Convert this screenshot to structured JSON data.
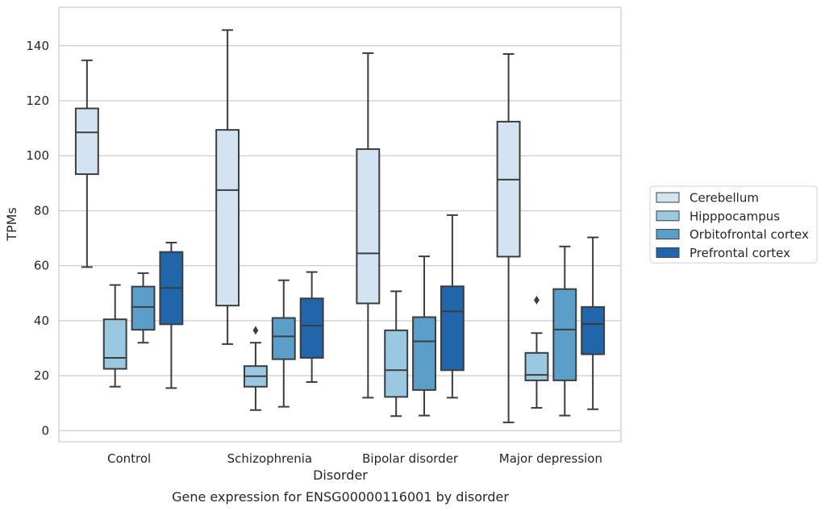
{
  "chart_data": {
    "type": "box",
    "caption": "Gene expression for ENSG00000116001 by disorder",
    "xlabel": "Disorder",
    "ylabel": "TPMs",
    "ylim": [
      -4,
      154
    ],
    "yticks": [
      0,
      20,
      40,
      60,
      80,
      100,
      120,
      140
    ],
    "grid": "horizontal",
    "legend_position": "right",
    "categories": [
      "Control",
      "Schizophrenia",
      "Bipolar disorder",
      "Major depression"
    ],
    "series": [
      {
        "name": "Cerebellum",
        "color": "#d3e3f1",
        "boxes": [
          {
            "whislo": 59.5,
            "q1": 93.3,
            "med": 108.5,
            "q3": 117.2,
            "whishi": 134.7,
            "fliers": []
          },
          {
            "whislo": 31.5,
            "q1": 45.5,
            "med": 87.5,
            "q3": 109.4,
            "whishi": 145.7,
            "fliers": []
          },
          {
            "whislo": 12.0,
            "q1": 46.3,
            "med": 64.5,
            "q3": 102.4,
            "whishi": 137.3,
            "fliers": []
          },
          {
            "whislo": 3.0,
            "q1": 63.3,
            "med": 91.3,
            "q3": 112.4,
            "whishi": 137.0,
            "fliers": []
          }
        ]
      },
      {
        "name": "Hipppocampus",
        "color": "#9ac8e0",
        "boxes": [
          {
            "whislo": 16.0,
            "q1": 22.5,
            "med": 26.5,
            "q3": 40.5,
            "whishi": 53.0,
            "fliers": []
          },
          {
            "whislo": 7.5,
            "q1": 16.0,
            "med": 19.8,
            "q3": 23.5,
            "whishi": 32.0,
            "fliers": [
              36.5
            ]
          },
          {
            "whislo": 5.3,
            "q1": 12.3,
            "med": 22.0,
            "q3": 36.5,
            "whishi": 50.7,
            "fliers": []
          },
          {
            "whislo": 8.3,
            "q1": 18.3,
            "med": 20.3,
            "q3": 28.3,
            "whishi": 35.5,
            "fliers": [
              47.5
            ]
          }
        ]
      },
      {
        "name": "Orbitofrontal cortex",
        "color": "#5a9ec9",
        "boxes": [
          {
            "whislo": 32.0,
            "q1": 36.7,
            "med": 45.0,
            "q3": 52.4,
            "whishi": 57.3,
            "fliers": []
          },
          {
            "whislo": 8.7,
            "q1": 26.0,
            "med": 34.3,
            "q3": 41.0,
            "whishi": 54.7,
            "fliers": []
          },
          {
            "whislo": 5.5,
            "q1": 14.8,
            "med": 32.5,
            "q3": 41.3,
            "whishi": 63.4,
            "fliers": []
          },
          {
            "whislo": 5.5,
            "q1": 18.3,
            "med": 36.8,
            "q3": 51.5,
            "whishi": 67.0,
            "fliers": []
          }
        ]
      },
      {
        "name": "Prefrontal cortex",
        "color": "#2165ab",
        "boxes": [
          {
            "whislo": 15.5,
            "q1": 38.7,
            "med": 51.9,
            "q3": 65.0,
            "whishi": 68.4,
            "fliers": []
          },
          {
            "whislo": 17.7,
            "q1": 26.5,
            "med": 38.2,
            "q3": 48.1,
            "whishi": 57.7,
            "fliers": []
          },
          {
            "whislo": 12.0,
            "q1": 22.0,
            "med": 43.4,
            "q3": 52.5,
            "whishi": 78.4,
            "fliers": []
          },
          {
            "whislo": 7.8,
            "q1": 27.8,
            "med": 38.8,
            "q3": 45.0,
            "whishi": 70.3,
            "fliers": []
          }
        ]
      }
    ]
  }
}
